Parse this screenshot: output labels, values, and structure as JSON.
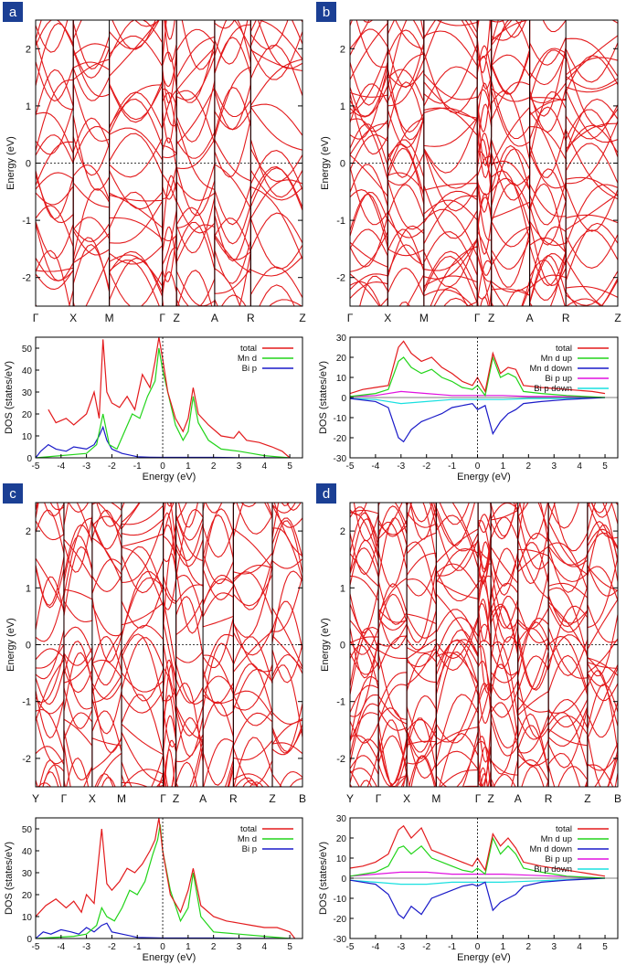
{
  "colors": {
    "band": "#e31a1c",
    "total": "#e31a1c",
    "mn": "#22d41a",
    "bi": "#1a1ac8",
    "bi_up": "#e011e0",
    "bi_down": "#19e0e0",
    "badge": "#1b3f94"
  },
  "panels": [
    {
      "label": "a",
      "band_ylabel": "Energy (eV)",
      "kpoints": [
        "Γ",
        "X",
        "M",
        "Γ",
        "Z",
        "A",
        "R",
        "Z"
      ]
    },
    {
      "label": "b",
      "band_ylabel": "Energy (eV)",
      "kpoints": [
        "Γ",
        "X",
        "M",
        "Γ",
        "Z",
        "A",
        "R",
        "Z"
      ]
    },
    {
      "label": "c",
      "band_ylabel": "Energy (eV)",
      "kpoints": [
        "Y",
        "Γ",
        "X",
        "M",
        "Γ",
        "Z",
        "A",
        "R",
        "Z",
        "B"
      ]
    },
    {
      "label": "d",
      "band_ylabel": "Energy (eV)",
      "kpoints": [
        "Y",
        "Γ",
        "X",
        "M",
        "Γ",
        "Z",
        "A",
        "R",
        "Z",
        "B"
      ]
    }
  ],
  "chart_data": [
    {
      "type": "line",
      "panel": "a",
      "title": "",
      "xlabel": "",
      "ylabel": "Energy (eV)",
      "ylim": [
        -2.5,
        2.5
      ],
      "yticks": [
        -2,
        -1,
        0,
        1,
        2
      ],
      "kpoints": [
        "Γ",
        "X",
        "M",
        "Γ",
        "Z",
        "A",
        "R",
        "Z"
      ],
      "fermi_level": 0
    },
    {
      "type": "line",
      "panel": "a",
      "xlabel": "Energy (eV)",
      "ylabel": "DOS (states/eV)",
      "xlim": [
        -5,
        5.5
      ],
      "ylim": [
        0,
        55
      ],
      "xticks": [
        -5,
        -4,
        -3,
        -2,
        -1,
        0,
        1,
        2,
        3,
        4,
        5
      ],
      "yticks": [
        0,
        10,
        20,
        30,
        40,
        50
      ],
      "series": [
        {
          "name": "total",
          "x": [
            -4.5,
            -4.2,
            -3.8,
            -3.5,
            -3.0,
            -2.7,
            -2.5,
            -2.35,
            -2.2,
            -2.0,
            -1.7,
            -1.4,
            -1.1,
            -0.8,
            -0.5,
            -0.3,
            -0.15,
            0,
            0.2,
            0.5,
            0.8,
            1.0,
            1.2,
            1.4,
            1.8,
            2.3,
            2.8,
            3.0,
            3.3,
            3.8,
            4.3,
            4.7,
            5.0
          ],
          "values": [
            22,
            16,
            18,
            15,
            20,
            30,
            18,
            54,
            30,
            25,
            23,
            28,
            22,
            38,
            32,
            44,
            55,
            45,
            30,
            18,
            12,
            18,
            32,
            20,
            15,
            10,
            9,
            12,
            8,
            7,
            5,
            3,
            0
          ]
        },
        {
          "name": "Mn d",
          "x": [
            -5,
            -3,
            -2.6,
            -2.35,
            -2.1,
            -1.8,
            -1.5,
            -1.2,
            -0.9,
            -0.6,
            -0.3,
            -0.15,
            0,
            0.2,
            0.5,
            0.8,
            1.0,
            1.2,
            1.4,
            1.8,
            2.3,
            3.0,
            3.5,
            4.0,
            4.5,
            5.0
          ],
          "values": [
            0,
            2,
            6,
            20,
            6,
            4,
            12,
            20,
            18,
            28,
            35,
            50,
            40,
            30,
            15,
            8,
            12,
            28,
            16,
            8,
            4,
            3,
            2,
            1,
            0.5,
            0
          ]
        },
        {
          "name": "Bi p",
          "x": [
            -5,
            -4.8,
            -4.5,
            -4.2,
            -3.8,
            -3.5,
            -3.0,
            -2.7,
            -2.5,
            -2.35,
            -2.2,
            -2.0,
            -1.6,
            -1.2,
            -1.0,
            -0.5,
            0,
            1,
            2,
            3,
            4,
            5
          ],
          "values": [
            0,
            3,
            6,
            4,
            3,
            5,
            4,
            6,
            10,
            14,
            8,
            4,
            2,
            1,
            0.5,
            0.3,
            0.2,
            0.2,
            0.2,
            0.1,
            0.1,
            0
          ]
        }
      ]
    },
    {
      "type": "line",
      "panel": "b",
      "xlabel": "",
      "ylabel": "Energy (eV)",
      "ylim": [
        -2.5,
        2.5
      ],
      "yticks": [
        -2,
        -1,
        0,
        1,
        2
      ],
      "kpoints": [
        "Γ",
        "X",
        "M",
        "Γ",
        "Z",
        "A",
        "R",
        "Z"
      ],
      "fermi_level": 0
    },
    {
      "type": "line",
      "panel": "b",
      "xlabel": "Energy (eV)",
      "ylabel": "DOS (states/eV)",
      "xlim": [
        -5,
        5.5
      ],
      "ylim": [
        -30,
        30
      ],
      "xticks": [
        -5,
        -4,
        -3,
        -2,
        -1,
        0,
        1,
        2,
        3,
        4,
        5
      ],
      "yticks": [
        -30,
        -20,
        -10,
        0,
        10,
        20,
        30
      ],
      "series": [
        {
          "name": "total",
          "x": [
            -5,
            -4.5,
            -4,
            -3.5,
            -3.1,
            -2.9,
            -2.6,
            -2.2,
            -1.8,
            -1.4,
            -1,
            -0.6,
            -0.2,
            0,
            0.3,
            0.6,
            0.9,
            1.2,
            1.5,
            1.8,
            2.5,
            3.5,
            4.5,
            5
          ],
          "values": [
            2,
            4,
            5,
            6,
            25,
            28,
            22,
            18,
            20,
            15,
            12,
            8,
            6,
            10,
            3,
            22,
            12,
            15,
            14,
            6,
            5,
            4,
            3,
            2
          ]
        },
        {
          "name": "Mn d up",
          "x": [
            -5,
            -4,
            -3.5,
            -3.1,
            -2.9,
            -2.6,
            -2.2,
            -1.8,
            -1.4,
            -1,
            -0.6,
            -0.2,
            0,
            0.3,
            0.6,
            0.9,
            1.2,
            1.5,
            1.8,
            2.5,
            3.5,
            5
          ],
          "values": [
            0.5,
            2,
            4,
            18,
            20,
            15,
            12,
            14,
            10,
            8,
            5,
            4,
            6,
            1,
            20,
            10,
            12,
            10,
            3,
            2,
            1,
            0
          ]
        },
        {
          "name": "Mn d down",
          "x": [
            -5,
            -4,
            -3.5,
            -3.1,
            -2.9,
            -2.6,
            -2.2,
            -1.8,
            -1.4,
            -1,
            -0.6,
            -0.2,
            0,
            0.3,
            0.6,
            0.9,
            1.2,
            1.5,
            1.8,
            2.5,
            3.5,
            5
          ],
          "values": [
            -0.5,
            -2,
            -5,
            -20,
            -22,
            -16,
            -12,
            -10,
            -8,
            -5,
            -4,
            -3,
            -6,
            -4,
            -18,
            -12,
            -8,
            -6,
            -3,
            -2,
            -1,
            0
          ]
        },
        {
          "name": "Bi p up",
          "x": [
            -5,
            -4,
            -3,
            -2,
            -1,
            0,
            1,
            2,
            3,
            4,
            5
          ],
          "values": [
            0.5,
            1,
            3,
            2,
            1,
            1,
            1,
            0.5,
            0.5,
            0.3,
            0
          ]
        },
        {
          "name": "Bi p down",
          "x": [
            -5,
            -4,
            -3,
            -2,
            -1,
            0,
            1,
            2,
            3,
            4,
            5
          ],
          "values": [
            -0.5,
            -1,
            -3,
            -2,
            -1,
            -1,
            -1,
            -0.5,
            -0.5,
            -0.3,
            0
          ]
        }
      ]
    },
    {
      "type": "line",
      "panel": "c",
      "xlabel": "",
      "ylabel": "Energy (eV)",
      "ylim": [
        -2.5,
        2.5
      ],
      "yticks": [
        -2,
        -1,
        0,
        1,
        2
      ],
      "kpoints": [
        "Y",
        "Γ",
        "X",
        "M",
        "Γ",
        "Z",
        "A",
        "R",
        "Z",
        "B"
      ],
      "fermi_level": 0
    },
    {
      "type": "line",
      "panel": "c",
      "xlabel": "Energy (eV)",
      "ylabel": "DOS (states/eV)",
      "xlim": [
        -5,
        5.5
      ],
      "ylim": [
        0,
        55
      ],
      "xticks": [
        -5,
        -4,
        -3,
        -2,
        -1,
        0,
        1,
        2,
        3,
        4,
        5
      ],
      "yticks": [
        0,
        10,
        20,
        30,
        40,
        50
      ],
      "series": [
        {
          "name": "total",
          "x": [
            -5,
            -4.6,
            -4.2,
            -3.8,
            -3.5,
            -3.2,
            -3,
            -2.7,
            -2.4,
            -2.2,
            -2,
            -1.7,
            -1.4,
            -1.1,
            -0.8,
            -0.5,
            -0.3,
            -0.15,
            0,
            0.3,
            0.7,
            1,
            1.2,
            1.5,
            2,
            2.5,
            3,
            3.5,
            4,
            4.5,
            5,
            5.2
          ],
          "values": [
            10,
            15,
            18,
            14,
            17,
            12,
            20,
            16,
            50,
            25,
            22,
            26,
            32,
            30,
            34,
            40,
            45,
            55,
            40,
            20,
            12,
            22,
            32,
            15,
            10,
            8,
            7,
            6,
            5,
            5,
            3,
            0
          ]
        },
        {
          "name": "Mn d",
          "x": [
            -5,
            -3.5,
            -3,
            -2.6,
            -2.4,
            -2.2,
            -1.9,
            -1.6,
            -1.3,
            -1,
            -0.7,
            -0.4,
            -0.2,
            -0.1,
            0,
            0.3,
            0.7,
            1,
            1.2,
            1.5,
            2,
            3,
            4,
            5
          ],
          "values": [
            0,
            1,
            2,
            6,
            14,
            10,
            8,
            14,
            22,
            20,
            26,
            38,
            45,
            52,
            40,
            22,
            8,
            14,
            30,
            10,
            3,
            2,
            1,
            0
          ]
        },
        {
          "name": "Bi p",
          "x": [
            -5,
            -4.7,
            -4.4,
            -4,
            -3.6,
            -3.3,
            -3,
            -2.7,
            -2.4,
            -2.2,
            -2,
            -1.6,
            -1.2,
            -1,
            0,
            1,
            2,
            3,
            4,
            5
          ],
          "values": [
            0,
            3,
            2,
            4,
            3,
            2,
            5,
            3,
            6,
            7,
            3,
            2,
            1,
            0.5,
            0.2,
            0.2,
            0.2,
            0.1,
            0.1,
            0
          ]
        }
      ]
    },
    {
      "type": "line",
      "panel": "d",
      "xlabel": "",
      "ylabel": "Energy (eV)",
      "ylim": [
        -2.5,
        2.5
      ],
      "yticks": [
        -2,
        -1,
        0,
        1,
        2
      ],
      "kpoints": [
        "Y",
        "Γ",
        "X",
        "M",
        "Γ",
        "Z",
        "A",
        "R",
        "Z",
        "B"
      ],
      "fermi_level": 0
    },
    {
      "type": "line",
      "panel": "d",
      "xlabel": "Energy (eV)",
      "ylabel": "DOS (states/eV)",
      "xlim": [
        -5,
        5.5
      ],
      "ylim": [
        -30,
        30
      ],
      "xticks": [
        -5,
        -4,
        -3,
        -2,
        -1,
        0,
        1,
        2,
        3,
        4,
        5
      ],
      "yticks": [
        -30,
        -20,
        -10,
        0,
        10,
        20,
        30
      ],
      "series": [
        {
          "name": "total",
          "x": [
            -5,
            -4.5,
            -4,
            -3.5,
            -3.1,
            -2.9,
            -2.6,
            -2.2,
            -1.8,
            -1.4,
            -1,
            -0.6,
            -0.2,
            0,
            0.3,
            0.6,
            0.9,
            1.2,
            1.5,
            1.8,
            2.5,
            3.5,
            4.5,
            5
          ],
          "values": [
            5,
            6,
            8,
            12,
            24,
            26,
            20,
            25,
            14,
            12,
            10,
            8,
            6,
            10,
            4,
            22,
            16,
            20,
            15,
            8,
            6,
            4,
            2,
            1
          ]
        },
        {
          "name": "Mn d up",
          "x": [
            -5,
            -4,
            -3.5,
            -3.1,
            -2.9,
            -2.6,
            -2.2,
            -1.8,
            -1.4,
            -1,
            -0.6,
            -0.2,
            0,
            0.3,
            0.6,
            0.9,
            1.2,
            1.5,
            1.8,
            2.5,
            3.5,
            5
          ],
          "values": [
            1,
            3,
            6,
            15,
            16,
            12,
            16,
            10,
            8,
            6,
            4,
            3,
            5,
            2,
            20,
            12,
            16,
            12,
            5,
            3,
            1,
            0
          ]
        },
        {
          "name": "Mn d down",
          "x": [
            -5,
            -4,
            -3.5,
            -3.1,
            -2.9,
            -2.6,
            -2.2,
            -1.8,
            -1.4,
            -1,
            -0.6,
            -0.2,
            0,
            0.3,
            0.6,
            0.9,
            1.2,
            1.5,
            1.8,
            2.5,
            3.5,
            5
          ],
          "values": [
            -1,
            -3,
            -8,
            -18,
            -20,
            -14,
            -18,
            -10,
            -8,
            -6,
            -4,
            -3,
            -4,
            -2,
            -16,
            -12,
            -10,
            -8,
            -4,
            -2,
            -1,
            0
          ]
        },
        {
          "name": "Bi p up",
          "x": [
            -5,
            -4,
            -3,
            -2,
            -1,
            0,
            1,
            2,
            3,
            4,
            5
          ],
          "values": [
            1,
            2,
            3,
            3,
            2,
            2,
            2,
            1.5,
            1,
            0.5,
            0
          ]
        },
        {
          "name": "Bi p down",
          "x": [
            -5,
            -4,
            -3,
            -2,
            -1,
            0,
            1,
            2,
            3,
            4,
            5
          ],
          "values": [
            -1,
            -2,
            -3,
            -3,
            -2,
            -2,
            -2,
            -1.5,
            -1,
            -0.5,
            0
          ]
        }
      ]
    }
  ]
}
